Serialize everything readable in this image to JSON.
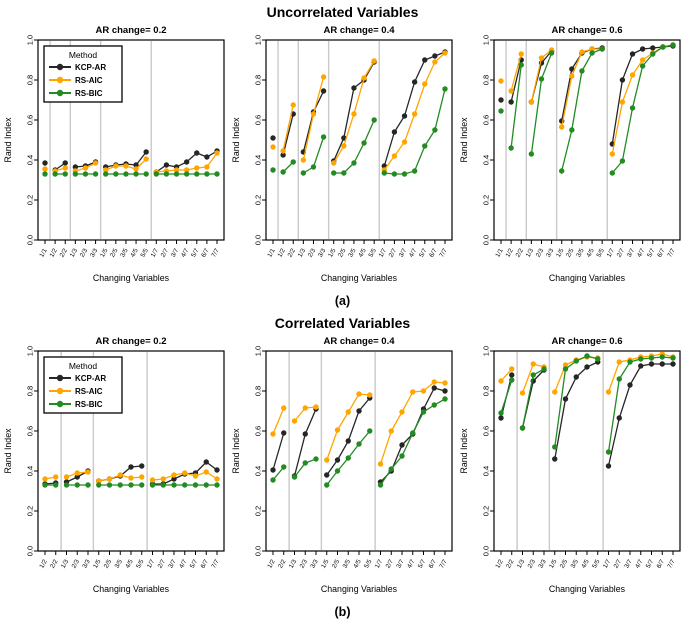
{
  "figure": {
    "background": "#ffffff",
    "sections": [
      {
        "id": "a",
        "title": "Uncorrelated Variables",
        "sublabel": "(a)"
      },
      {
        "id": "b",
        "title": "Correlated Variables",
        "sublabel": "(b)"
      }
    ]
  },
  "legend": {
    "title": "Method",
    "entries": [
      "KCP-AR",
      "RS-AIC",
      "RS-BIC"
    ]
  },
  "colors": {
    "kcp_ar": "#262626",
    "rs_aic": "#FFA500",
    "rs_bic": "#228B22",
    "separator": "#c9c9c9",
    "axis": "#000000"
  },
  "chart_data": [
    {
      "id": "a-02",
      "section": "a",
      "type": "line",
      "title": "AR change= 0.2",
      "xlabel": "Changing Variables",
      "ylabel": "Rand Index",
      "ylim": [
        0.0,
        1.0
      ],
      "yticks": [
        0.0,
        0.2,
        0.4,
        0.6,
        0.8,
        1.0
      ],
      "grid": false,
      "legend": true,
      "legend_position": "top-left",
      "x_labels": [
        "1/1",
        "1/2",
        "2/2",
        "1/3",
        "2/3",
        "3/3",
        "1/5",
        "2/5",
        "3/5",
        "4/5",
        "5/5",
        "1/7",
        "2/7",
        "3/7",
        "4/7",
        "5/7",
        "6/7",
        "7/7"
      ],
      "groups": [
        1,
        2,
        3,
        5,
        7
      ],
      "series": [
        {
          "name": "KCP-AR",
          "color": "#262626",
          "values": [
            0.385,
            0.35,
            0.385,
            0.365,
            0.37,
            0.39,
            0.365,
            0.375,
            0.38,
            0.375,
            0.44,
            0.34,
            0.375,
            0.365,
            0.39,
            0.435,
            0.415,
            0.445
          ]
        },
        {
          "name": "RS-AIC",
          "color": "#FFA500",
          "values": [
            0.355,
            0.345,
            0.36,
            0.345,
            0.36,
            0.385,
            0.35,
            0.37,
            0.37,
            0.355,
            0.405,
            0.34,
            0.345,
            0.35,
            0.35,
            0.36,
            0.365,
            0.435
          ]
        },
        {
          "name": "RS-BIC",
          "color": "#228B22",
          "values": [
            0.33,
            0.33,
            0.33,
            0.33,
            0.33,
            0.33,
            0.33,
            0.33,
            0.33,
            0.33,
            0.33,
            0.33,
            0.33,
            0.33,
            0.33,
            0.33,
            0.33,
            0.33
          ]
        }
      ]
    },
    {
      "id": "a-04",
      "section": "a",
      "type": "line",
      "title": "AR change= 0.4",
      "xlabel": "Changing Variables",
      "ylabel": "Rand Index",
      "ylim": [
        0.0,
        1.0
      ],
      "yticks": [
        0.0,
        0.2,
        0.4,
        0.6,
        0.8,
        1.0
      ],
      "grid": false,
      "legend": false,
      "x_labels": [
        "1/1",
        "1/2",
        "2/2",
        "1/3",
        "2/3",
        "3/3",
        "1/5",
        "2/5",
        "3/5",
        "4/5",
        "5/5",
        "1/7",
        "2/7",
        "3/7",
        "4/7",
        "5/7",
        "6/7",
        "7/7"
      ],
      "groups": [
        1,
        2,
        3,
        5,
        7
      ],
      "series": [
        {
          "name": "KCP-AR",
          "color": "#262626",
          "values": [
            0.51,
            0.425,
            0.63,
            0.44,
            0.64,
            0.745,
            0.395,
            0.51,
            0.76,
            0.8,
            0.89,
            0.37,
            0.54,
            0.62,
            0.79,
            0.9,
            0.92,
            0.94
          ]
        },
        {
          "name": "RS-AIC",
          "color": "#FFA500",
          "values": [
            0.465,
            0.445,
            0.675,
            0.4,
            0.63,
            0.815,
            0.385,
            0.47,
            0.63,
            0.81,
            0.895,
            0.35,
            0.42,
            0.49,
            0.63,
            0.78,
            0.89,
            0.935
          ]
        },
        {
          "name": "RS-BIC",
          "color": "#228B22",
          "values": [
            0.35,
            0.34,
            0.39,
            0.335,
            0.365,
            0.515,
            0.335,
            0.335,
            0.385,
            0.485,
            0.6,
            0.335,
            0.33,
            0.33,
            0.345,
            0.47,
            0.55,
            0.755
          ]
        }
      ]
    },
    {
      "id": "a-06",
      "section": "a",
      "type": "line",
      "title": "AR change= 0.6",
      "xlabel": "Changing Variables",
      "ylabel": "Rand Index",
      "ylim": [
        0.0,
        1.0
      ],
      "yticks": [
        0.0,
        0.2,
        0.4,
        0.6,
        0.8,
        1.0
      ],
      "grid": false,
      "legend": false,
      "x_labels": [
        "1/1",
        "1/2",
        "2/2",
        "1/3",
        "2/3",
        "3/3",
        "1/5",
        "2/5",
        "3/5",
        "4/5",
        "5/5",
        "1/7",
        "2/7",
        "3/7",
        "4/7",
        "5/7",
        "6/7",
        "7/7"
      ],
      "groups": [
        1,
        2,
        3,
        5,
        7
      ],
      "series": [
        {
          "name": "KCP-AR",
          "color": "#262626",
          "values": [
            0.7,
            0.69,
            0.9,
            0.69,
            0.885,
            0.945,
            0.595,
            0.855,
            0.935,
            0.955,
            0.96,
            0.48,
            0.8,
            0.93,
            0.955,
            0.96,
            0.965,
            0.97
          ]
        },
        {
          "name": "RS-AIC",
          "color": "#FFA500",
          "values": [
            0.795,
            0.745,
            0.93,
            0.69,
            0.91,
            0.95,
            0.565,
            0.82,
            0.94,
            0.955,
            0.955,
            0.43,
            0.69,
            0.825,
            0.9,
            0.935,
            0.965,
            0.975
          ]
        },
        {
          "name": "RS-BIC",
          "color": "#228B22",
          "values": [
            0.645,
            0.46,
            0.875,
            0.43,
            0.805,
            0.935,
            0.345,
            0.55,
            0.845,
            0.935,
            0.955,
            0.335,
            0.395,
            0.66,
            0.87,
            0.93,
            0.965,
            0.975
          ]
        }
      ]
    },
    {
      "id": "b-02",
      "section": "b",
      "type": "line",
      "title": "AR change= 0.2",
      "xlabel": "Changing Variables",
      "ylabel": "Rand Index",
      "ylim": [
        0.0,
        1.0
      ],
      "yticks": [
        0.0,
        0.2,
        0.4,
        0.6,
        0.8,
        1.0
      ],
      "grid": false,
      "legend": true,
      "legend_position": "top-left",
      "x_labels": [
        "1/2",
        "2/2",
        "1/3",
        "2/3",
        "3/3",
        "1/5",
        "2/5",
        "3/5",
        "4/5",
        "5/5",
        "1/7",
        "2/7",
        "3/7",
        "4/7",
        "5/7",
        "6/7",
        "7/7"
      ],
      "groups": [
        2,
        3,
        5,
        7
      ],
      "series": [
        {
          "name": "KCP-AR",
          "color": "#262626",
          "values": [
            0.335,
            0.34,
            0.345,
            0.37,
            0.4,
            0.35,
            0.36,
            0.375,
            0.42,
            0.425,
            0.335,
            0.335,
            0.36,
            0.385,
            0.39,
            0.445,
            0.405
          ]
        },
        {
          "name": "RS-AIC",
          "color": "#FFA500",
          "values": [
            0.36,
            0.37,
            0.37,
            0.39,
            0.395,
            0.35,
            0.36,
            0.38,
            0.365,
            0.37,
            0.355,
            0.36,
            0.38,
            0.39,
            0.375,
            0.395,
            0.36
          ]
        },
        {
          "name": "RS-BIC",
          "color": "#228B22",
          "values": [
            0.33,
            0.33,
            0.33,
            0.33,
            0.33,
            0.33,
            0.33,
            0.33,
            0.33,
            0.33,
            0.33,
            0.33,
            0.33,
            0.33,
            0.33,
            0.33,
            0.33
          ]
        }
      ]
    },
    {
      "id": "b-04",
      "section": "b",
      "type": "line",
      "title": "AR change= 0.4",
      "xlabel": "Changing Variables",
      "ylabel": "Rand Index",
      "ylim": [
        0.0,
        1.0
      ],
      "yticks": [
        0.0,
        0.2,
        0.4,
        0.6,
        0.8,
        1.0
      ],
      "grid": false,
      "legend": false,
      "x_labels": [
        "1/2",
        "2/2",
        "1/3",
        "2/3",
        "3/3",
        "1/5",
        "2/5",
        "3/5",
        "4/5",
        "5/5",
        "1/7",
        "2/7",
        "3/7",
        "4/7",
        "5/7",
        "6/7",
        "7/7"
      ],
      "groups": [
        2,
        3,
        5,
        7
      ],
      "series": [
        {
          "name": "KCP-AR",
          "color": "#262626",
          "values": [
            0.405,
            0.59,
            0.375,
            0.585,
            0.71,
            0.38,
            0.455,
            0.55,
            0.7,
            0.765,
            0.345,
            0.4,
            0.53,
            0.585,
            0.71,
            0.815,
            0.8
          ]
        },
        {
          "name": "RS-AIC",
          "color": "#FFA500",
          "values": [
            0.585,
            0.715,
            0.65,
            0.715,
            0.72,
            0.455,
            0.605,
            0.695,
            0.785,
            0.78,
            0.435,
            0.6,
            0.695,
            0.795,
            0.8,
            0.845,
            0.84
          ]
        },
        {
          "name": "RS-BIC",
          "color": "#228B22",
          "values": [
            0.355,
            0.42,
            0.37,
            0.44,
            0.46,
            0.33,
            0.4,
            0.465,
            0.535,
            0.6,
            0.33,
            0.41,
            0.475,
            0.59,
            0.695,
            0.73,
            0.76
          ]
        }
      ]
    },
    {
      "id": "b-06",
      "section": "b",
      "type": "line",
      "title": "AR change= 0.6",
      "xlabel": "Changing Variables",
      "ylabel": "Rand Index",
      "ylim": [
        0.0,
        1.0
      ],
      "yticks": [
        0.0,
        0.2,
        0.4,
        0.6,
        0.8,
        1.0
      ],
      "grid": false,
      "legend": false,
      "x_labels": [
        "1/2",
        "2/2",
        "1/3",
        "2/3",
        "3/3",
        "1/5",
        "2/5",
        "3/5",
        "4/5",
        "5/5",
        "1/7",
        "2/7",
        "3/7",
        "4/7",
        "5/7",
        "6/7",
        "7/7"
      ],
      "groups": [
        2,
        3,
        5,
        7
      ],
      "series": [
        {
          "name": "KCP-AR",
          "color": "#262626",
          "values": [
            0.665,
            0.88,
            0.615,
            0.85,
            0.905,
            0.46,
            0.76,
            0.87,
            0.92,
            0.945,
            0.425,
            0.665,
            0.83,
            0.925,
            0.935,
            0.935,
            0.935
          ]
        },
        {
          "name": "RS-AIC",
          "color": "#FFA500",
          "values": [
            0.85,
            0.91,
            0.79,
            0.935,
            0.92,
            0.795,
            0.93,
            0.955,
            0.97,
            0.965,
            0.795,
            0.945,
            0.955,
            0.97,
            0.975,
            0.985,
            0.97
          ]
        },
        {
          "name": "RS-BIC",
          "color": "#228B22",
          "values": [
            0.69,
            0.855,
            0.615,
            0.88,
            0.91,
            0.52,
            0.91,
            0.95,
            0.975,
            0.96,
            0.495,
            0.86,
            0.945,
            0.96,
            0.965,
            0.97,
            0.965
          ]
        }
      ]
    }
  ]
}
